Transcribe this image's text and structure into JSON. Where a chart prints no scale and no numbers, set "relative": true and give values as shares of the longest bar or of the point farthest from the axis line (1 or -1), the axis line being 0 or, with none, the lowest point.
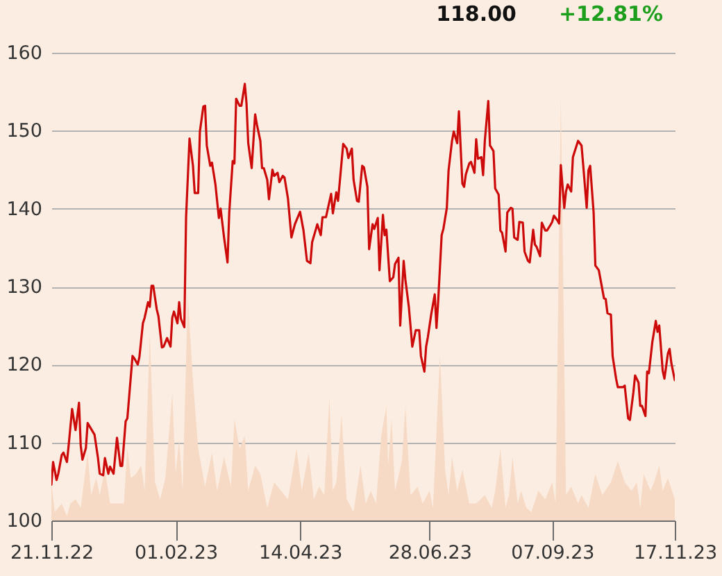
{
  "chart_data": [
    {
      "type": "line",
      "color": "#cc0a0a",
      "annotations": [
        "118.00",
        "+12.81%"
      ],
      "xlim": [
        "2022-11-21",
        "2023-11-17"
      ],
      "xticks": [
        {
          "value": "2022-11-21",
          "label": "21.11.22"
        },
        {
          "value": "2023-02-01",
          "label": "01.02.23"
        },
        {
          "value": "2023-04-14",
          "label": "14.04.23"
        },
        {
          "value": "2023-06-28",
          "label": "28.06.23"
        },
        {
          "value": "2023-09-07",
          "label": "07.09.23"
        },
        {
          "value": "2023-11-17",
          "label": "17.11.23"
        }
      ],
      "ylim": [
        100,
        160
      ],
      "yticks": [
        100,
        110,
        120,
        130,
        140,
        150,
        160
      ],
      "grid": "y",
      "x": [
        "2022-11-21",
        "2022-11-22",
        "2022-11-24",
        "2022-11-25",
        "2022-11-27",
        "2022-11-28",
        "2022-11-30",
        "2022-12-01",
        "2022-12-03",
        "2022-12-05",
        "2022-12-07",
        "2022-12-08",
        "2022-12-09",
        "2022-12-11",
        "2022-12-12",
        "2022-12-16",
        "2022-12-18",
        "2022-12-19",
        "2022-12-21",
        "2022-12-22",
        "2022-12-24",
        "2022-12-25",
        "2022-12-27",
        "2022-12-29",
        "2022-12-31",
        "2023-01-01",
        "2023-01-03",
        "2023-01-04",
        "2023-01-07",
        "2023-01-08",
        "2023-01-10",
        "2023-01-11",
        "2023-01-13",
        "2023-01-14",
        "2023-01-16",
        "2023-01-17",
        "2023-01-18",
        "2023-01-19",
        "2023-01-21",
        "2023-01-22",
        "2023-01-24",
        "2023-01-25",
        "2023-01-27",
        "2023-01-29",
        "2023-01-30",
        "2023-01-31",
        "2023-02-02",
        "2023-02-03",
        "2023-02-04",
        "2023-02-06",
        "2023-02-07",
        "2023-02-09",
        "2023-02-11",
        "2023-02-12",
        "2023-02-14",
        "2023-02-15",
        "2023-02-17",
        "2023-02-18",
        "2023-02-19",
        "2023-02-21",
        "2023-02-22",
        "2023-02-24",
        "2023-02-26",
        "2023-02-27",
        "2023-03-01",
        "2023-03-03",
        "2023-03-04",
        "2023-03-06",
        "2023-03-07",
        "2023-03-08",
        "2023-03-10",
        "2023-03-11",
        "2023-03-13",
        "2023-03-14",
        "2023-03-15",
        "2023-03-17",
        "2023-03-19",
        "2023-03-20",
        "2023-03-22",
        "2023-03-23",
        "2023-03-24",
        "2023-03-26",
        "2023-03-27",
        "2023-03-29",
        "2023-03-30",
        "2023-04-01",
        "2023-04-02",
        "2023-04-04",
        "2023-04-05",
        "2023-04-07",
        "2023-04-09",
        "2023-04-11",
        "2023-04-14",
        "2023-04-16",
        "2023-04-18",
        "2023-04-20",
        "2023-04-21",
        "2023-04-24",
        "2023-04-26",
        "2023-04-27",
        "2023-04-29",
        "2023-05-02",
        "2023-05-03",
        "2023-05-05",
        "2023-05-06",
        "2023-05-09",
        "2023-05-11",
        "2023-05-12",
        "2023-05-14",
        "2023-05-15",
        "2023-05-17",
        "2023-05-18",
        "2023-05-20",
        "2023-05-21",
        "2023-05-23",
        "2023-05-24",
        "2023-05-26",
        "2023-05-27",
        "2023-05-29",
        "2023-05-30",
        "2023-06-01",
        "2023-06-02",
        "2023-06-03",
        "2023-06-05",
        "2023-06-07",
        "2023-06-08",
        "2023-06-10",
        "2023-06-11",
        "2023-06-13",
        "2023-06-14",
        "2023-06-16",
        "2023-06-18",
        "2023-06-20",
        "2023-06-22",
        "2023-06-23",
        "2023-06-25",
        "2023-06-26",
        "2023-06-27",
        "2023-06-29",
        "2023-07-01",
        "2023-07-02",
        "2023-07-03",
        "2023-07-05",
        "2023-07-06",
        "2023-07-08",
        "2023-07-09",
        "2023-07-11",
        "2023-07-12",
        "2023-07-14",
        "2023-07-15",
        "2023-07-17",
        "2023-07-18",
        "2023-07-19",
        "2023-07-21",
        "2023-07-22",
        "2023-07-24",
        "2023-07-25",
        "2023-07-26",
        "2023-07-28",
        "2023-07-29",
        "2023-07-30",
        "2023-08-01",
        "2023-08-02",
        "2023-08-04",
        "2023-08-05",
        "2023-08-07",
        "2023-08-08",
        "2023-08-09",
        "2023-08-11",
        "2023-08-12",
        "2023-08-14",
        "2023-08-15",
        "2023-08-16",
        "2023-08-18",
        "2023-08-19",
        "2023-08-21",
        "2023-08-22",
        "2023-08-24",
        "2023-08-25",
        "2023-08-27",
        "2023-08-28",
        "2023-08-29",
        "2023-08-31",
        "2023-09-01",
        "2023-09-03",
        "2023-09-04",
        "2023-09-06",
        "2023-09-07",
        "2023-09-08",
        "2023-09-10",
        "2023-09-11",
        "2023-09-12",
        "2023-09-14",
        "2023-09-15",
        "2023-09-16",
        "2023-09-18",
        "2023-09-19",
        "2023-09-21",
        "2023-09-22",
        "2023-09-24",
        "2023-09-25",
        "2023-09-27",
        "2023-09-28",
        "2023-09-29",
        "2023-10-01",
        "2023-10-02",
        "2023-10-04",
        "2023-10-05",
        "2023-10-07",
        "2023-10-08",
        "2023-10-09",
        "2023-10-11",
        "2023-10-12",
        "2023-10-14",
        "2023-10-15",
        "2023-10-17",
        "2023-10-18",
        "2023-10-19",
        "2023-10-21",
        "2023-10-22",
        "2023-10-24",
        "2023-10-25",
        "2023-10-27",
        "2023-10-28",
        "2023-10-29",
        "2023-10-31",
        "2023-11-01",
        "2023-11-02",
        "2023-11-04",
        "2023-11-06",
        "2023-11-07",
        "2023-11-08",
        "2023-11-10",
        "2023-11-11",
        "2023-11-13",
        "2023-11-14",
        "2023-11-15",
        "2023-11-17"
      ],
      "values": [
        104.6,
        107.5,
        105.2,
        106,
        108.4,
        108.7,
        107.5,
        109.6,
        114.3,
        111.6,
        115.1,
        109.6,
        107.8,
        109.3,
        112.5,
        111,
        108,
        106,
        105.8,
        108,
        106,
        106.9,
        106,
        110.6,
        107,
        107,
        112.7,
        113.1,
        121.1,
        120.8,
        120,
        121,
        125.3,
        126,
        128,
        127.4,
        130.1,
        130.1,
        127.1,
        126.2,
        122.2,
        122.3,
        123.4,
        122.3,
        126,
        126.8,
        125.3,
        128,
        125.9,
        124.8,
        138.9,
        149,
        145.5,
        142,
        142,
        149.9,
        153.1,
        153.2,
        148.1,
        145.5,
        145.9,
        143.1,
        138.8,
        140,
        136.3,
        133.1,
        139.5,
        146.1,
        145.8,
        154.1,
        153.2,
        153.2,
        156,
        153.5,
        148.4,
        145.2,
        152.1,
        150.8,
        148.7,
        145.2,
        145.2,
        143.7,
        141.2,
        145,
        144.2,
        144.6,
        143.4,
        144.2,
        144,
        141.3,
        136.3,
        138,
        139.6,
        137.2,
        133.3,
        133,
        135.7,
        138,
        136.6,
        138.9,
        138.9,
        141.9,
        139.4,
        142.1,
        141,
        148.3,
        147.7,
        146.5,
        147.7,
        143.7,
        141,
        140.9,
        145.5,
        145.3,
        142.8,
        134.8,
        138,
        137.4,
        138.8,
        132.1,
        139.2,
        136.6,
        137.3,
        130.7,
        131.2,
        132.9,
        133.7,
        125,
        133.3,
        130.9,
        127.4,
        122.3,
        124.4,
        124.4,
        121.1,
        119.1,
        122.3,
        123.5,
        126.5,
        129,
        124.7,
        128.2,
        136.6,
        137.4,
        140.1,
        144.9,
        148.7,
        149.9,
        148.4,
        152.5,
        143.2,
        142.8,
        144.4,
        145.8,
        146,
        144.6,
        148.9,
        146.4,
        146.6,
        144.3,
        148.7,
        153.8,
        148.1,
        147.4,
        142.6,
        141.8,
        137.2,
        136.9,
        134.5,
        139.5,
        140.1,
        140,
        136.3,
        136,
        138.3,
        138.2,
        134.5,
        133.3,
        133.1,
        137.3,
        135.4,
        135.1,
        133.9,
        138.2,
        137.2,
        137.2,
        137.9,
        138.3,
        139.1,
        138.5,
        138.1,
        145.6,
        140.1,
        142.2,
        143.1,
        142.2,
        146.6,
        148,
        148.7,
        148.1,
        145.5,
        140.1,
        144.9,
        145.5,
        139.5,
        132.7,
        132.1,
        130.9,
        128.5,
        128.4,
        126.6,
        126.4,
        121.1,
        118.2,
        117.1,
        117.1,
        117.1,
        117.3,
        113.1,
        112.9,
        116.4,
        118.6,
        117.7,
        114.7,
        114.7,
        113.4,
        119.1,
        118.9,
        122.9,
        125.6,
        124.2,
        125,
        119.2,
        118.2,
        121.4,
        122,
        120.2,
        118
      ]
    },
    {
      "type": "area",
      "relative": true,
      "color": "#f6dac5",
      "xlim": [
        "2022-11-21",
        "2023-11-17"
      ],
      "x": [
        "2022-11-21",
        "2022-11-23",
        "2022-11-27",
        "2022-11-30",
        "2022-12-02",
        "2022-12-05",
        "2022-12-08",
        "2022-12-12",
        "2022-12-14",
        "2022-12-17",
        "2022-12-19",
        "2022-12-22",
        "2022-12-25",
        "2022-12-29",
        "2023-01-02",
        "2023-01-04",
        "2023-01-06",
        "2023-01-09",
        "2023-01-12",
        "2023-01-14",
        "2023-01-17",
        "2023-01-20",
        "2023-01-23",
        "2023-01-26",
        "2023-01-30",
        "2023-02-01",
        "2023-02-03",
        "2023-02-05",
        "2023-02-08",
        "2023-02-11",
        "2023-02-14",
        "2023-02-18",
        "2023-02-22",
        "2023-02-25",
        "2023-03-01",
        "2023-03-05",
        "2023-03-07",
        "2023-03-10",
        "2023-03-13",
        "2023-03-15",
        "2023-03-19",
        "2023-03-22",
        "2023-03-26",
        "2023-03-30",
        "2023-04-03",
        "2023-04-07",
        "2023-04-12",
        "2023-04-15",
        "2023-04-19",
        "2023-04-22",
        "2023-04-25",
        "2023-04-28",
        "2023-05-01",
        "2023-05-03",
        "2023-05-05",
        "2023-05-08",
        "2023-05-11",
        "2023-05-15",
        "2023-05-19",
        "2023-05-22",
        "2023-05-25",
        "2023-05-28",
        "2023-05-31",
        "2023-06-03",
        "2023-06-04",
        "2023-06-06",
        "2023-06-08",
        "2023-06-12",
        "2023-06-14",
        "2023-06-17",
        "2023-06-21",
        "2023-06-24",
        "2023-06-28",
        "2023-06-30",
        "2023-07-04",
        "2023-07-07",
        "2023-07-09",
        "2023-07-11",
        "2023-07-14",
        "2023-07-17",
        "2023-07-21",
        "2023-07-25",
        "2023-07-30",
        "2023-08-03",
        "2023-08-05",
        "2023-08-08",
        "2023-08-11",
        "2023-08-13",
        "2023-08-15",
        "2023-08-18",
        "2023-08-20",
        "2023-08-23",
        "2023-08-26",
        "2023-08-30",
        "2023-09-03",
        "2023-09-07",
        "2023-09-09",
        "2023-09-12",
        "2023-09-15",
        "2023-09-18",
        "2023-09-22",
        "2023-09-24",
        "2023-09-28",
        "2023-10-02",
        "2023-10-06",
        "2023-10-11",
        "2023-10-15",
        "2023-10-19",
        "2023-10-23",
        "2023-10-26",
        "2023-10-28",
        "2023-10-30",
        "2023-11-03",
        "2023-11-05",
        "2023-11-08",
        "2023-11-10",
        "2023-11-13",
        "2023-11-17"
      ],
      "values": [
        0.09,
        0.02,
        0.04,
        0.01,
        0.04,
        0.05,
        0.03,
        0.16,
        0.06,
        0.1,
        0.06,
        0.12,
        0.04,
        0.04,
        0.04,
        0.17,
        0.1,
        0.11,
        0.13,
        0.07,
        0.44,
        0.09,
        0.05,
        0.1,
        0.3,
        0.11,
        0.19,
        0.07,
        0.53,
        0.33,
        0.17,
        0.08,
        0.16,
        0.07,
        0.15,
        0.08,
        0.24,
        0.17,
        0.2,
        0.07,
        0.13,
        0.11,
        0.03,
        0.09,
        0.07,
        0.05,
        0.17,
        0.07,
        0.16,
        0.05,
        0.08,
        0.06,
        0.29,
        0.07,
        0.09,
        0.25,
        0.05,
        0.02,
        0.13,
        0.04,
        0.07,
        0.04,
        0.2,
        0.27,
        0.13,
        0.24,
        0.07,
        0.14,
        0.27,
        0.06,
        0.08,
        0.04,
        0.07,
        0.03,
        0.39,
        0.12,
        0.06,
        0.15,
        0.07,
        0.12,
        0.04,
        0.04,
        0.06,
        0.03,
        0.07,
        0.17,
        0.03,
        0.06,
        0.15,
        0.04,
        0.07,
        0.03,
        0.02,
        0.07,
        0.05,
        0.09,
        0.04,
        1.0,
        0.06,
        0.08,
        0.04,
        0.06,
        0.03,
        0.11,
        0.06,
        0.09,
        0.14,
        0.09,
        0.07,
        0.09,
        0.03,
        0.11,
        0.07,
        0.09,
        0.13,
        0.07,
        0.1,
        0.05
      ]
    }
  ]
}
